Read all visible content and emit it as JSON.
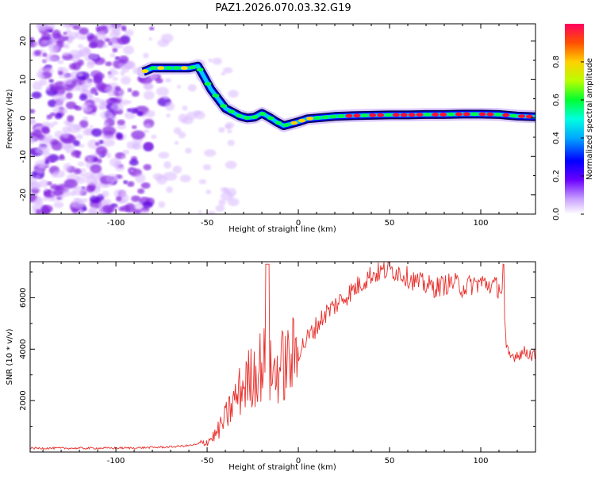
{
  "title": "PAZ1.2026.070.03.32.G19",
  "colors": {
    "snr_line": "#e8302c",
    "ridge_low": "#0000ff",
    "ridge_mid": "#00ff44",
    "ridge_high": "#ff1030",
    "noise_purple": "#8a2be2",
    "noise_light": "#d9b8ff"
  },
  "chart_data": [
    {
      "id": "spectrogram",
      "type": "heatmap",
      "xlabel": "Height of straight line (km)",
      "ylabel": "Frequency (Hz)",
      "xlim": [
        -147,
        130
      ],
      "ylim": [
        -25,
        24.5
      ],
      "xticks": [
        -100,
        -50,
        0,
        50,
        100
      ],
      "xtick_labels": [
        "-100",
        "-50",
        "0",
        "50",
        "100"
      ],
      "yticks": [
        -20,
        -10,
        0,
        10,
        20
      ],
      "ytick_labels": [
        "-20",
        "-10",
        "0",
        "10",
        "20"
      ],
      "colorbar": {
        "label": "Normalized spectral amplitude",
        "range": [
          0,
          1
        ],
        "ticks": [
          0.0,
          0.2,
          0.4,
          0.6,
          0.8
        ],
        "tick_labels": [
          "0.0",
          "0.2",
          "0.4",
          "0.6",
          "0.8"
        ]
      },
      "ridge": {
        "x": [
          -85,
          -80,
          -75,
          -70,
          -65,
          -60,
          -55,
          -52,
          -48,
          -44,
          -40,
          -36,
          -32,
          -28,
          -24,
          -20,
          -16,
          -12,
          -8,
          -4,
          0,
          5,
          10,
          20,
          30,
          40,
          50,
          60,
          70,
          80,
          90,
          100,
          110,
          120,
          130
        ],
        "freq": [
          12,
          13,
          13,
          13,
          13,
          13,
          13.5,
          11,
          7.5,
          5,
          2.5,
          1.5,
          0.5,
          0,
          0.2,
          1.2,
          0.2,
          -1,
          -2,
          -1.5,
          -1,
          -0.2,
          0,
          0.4,
          0.6,
          0.7,
          0.8,
          0.8,
          0.9,
          0.9,
          1,
          1,
          0.9,
          0.5,
          0.3
        ]
      },
      "noise_region_x": [
        -147,
        -70
      ]
    },
    {
      "id": "snr",
      "type": "line",
      "xlabel": "Height of straight line (km)",
      "ylabel": "SNR (10 * v/v)",
      "xlim": [
        -147,
        130
      ],
      "ylim": [
        0,
        7400
      ],
      "xticks": [
        -100,
        -50,
        0,
        50,
        100
      ],
      "xtick_labels": [
        "-100",
        "-50",
        "0",
        "50",
        "100"
      ],
      "yticks": [
        2000,
        4000,
        6000
      ],
      "ytick_labels": [
        "2000",
        "4000",
        "6000"
      ],
      "series": [
        {
          "name": "SNR",
          "x": [
            -147,
            -130,
            -110,
            -90,
            -70,
            -60,
            -55,
            -50,
            -45,
            -40,
            -35,
            -30,
            -25,
            -20,
            -17,
            -15,
            -10,
            -5,
            0,
            5,
            10,
            15,
            20,
            25,
            30,
            35,
            40,
            45,
            50,
            55,
            60,
            65,
            70,
            75,
            80,
            85,
            90,
            95,
            100,
            105,
            110,
            112,
            114,
            116,
            120,
            125,
            130
          ],
          "y": [
            150,
            150,
            150,
            160,
            200,
            250,
            300,
            400,
            700,
            1300,
            2000,
            2600,
            3000,
            3400,
            3600,
            3000,
            3300,
            3500,
            3900,
            4400,
            4900,
            5400,
            5700,
            6000,
            6300,
            6600,
            6900,
            7000,
            7100,
            7000,
            6800,
            6600,
            6500,
            6400,
            6500,
            6600,
            6400,
            6500,
            6600,
            6500,
            6400,
            6200,
            4000,
            3700,
            3800,
            3900,
            3700
          ]
        }
      ]
    }
  ]
}
